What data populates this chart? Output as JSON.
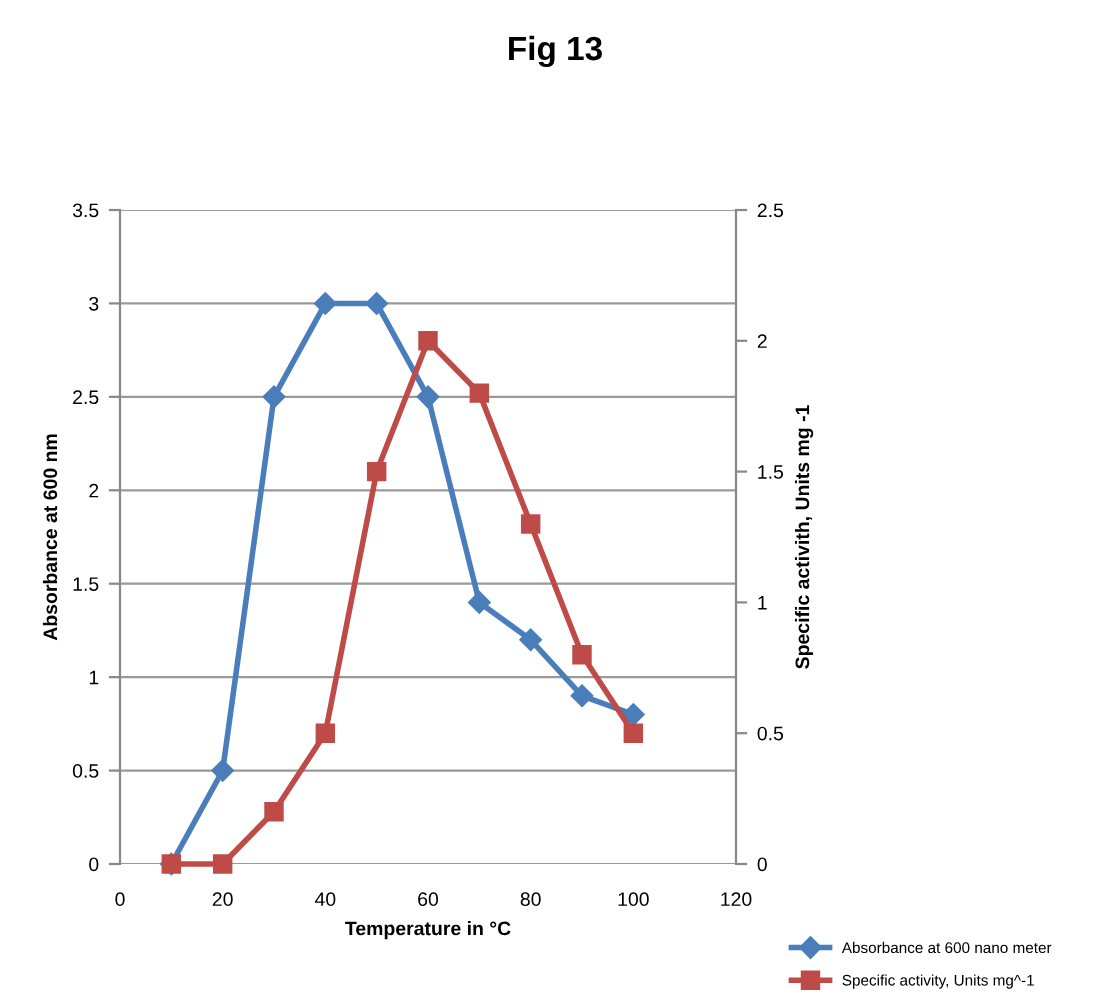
{
  "chart_data": {
    "type": "line",
    "title": "Fig 13",
    "xlabel": "Temperature in °C",
    "ylabel": "Absorbance at 600 nm",
    "y2label": "Specific activith, Units mg -1",
    "x": [
      10,
      20,
      30,
      40,
      50,
      60,
      70,
      80,
      90,
      100
    ],
    "series": [
      {
        "name": "Absorbance at 600 nano meter",
        "color": "#4a7ebb",
        "marker": "diamond",
        "values": [
          0,
          0.5,
          2.5,
          3,
          3,
          2.5,
          1.4,
          1.2,
          0.9,
          0.8
        ]
      },
      {
        "name": "Specific activity, Units mg^-1",
        "color": "#be4b48",
        "marker": "square",
        "axis": "y2",
        "values": [
          0,
          0,
          0.2,
          0.5,
          1.5,
          2,
          1.8,
          1.3,
          0.8,
          0.5
        ]
      }
    ],
    "xlim": [
      0,
      120
    ],
    "xticks": [
      0,
      20,
      40,
      60,
      80,
      100,
      120
    ],
    "ylim": [
      0,
      3.5
    ],
    "yticks": [
      0,
      0.5,
      1,
      1.5,
      2,
      2.5,
      3,
      3.5
    ],
    "y2lim": [
      0,
      2.5
    ],
    "y2ticks": [
      0,
      0.5,
      1,
      1.5,
      2,
      2.5
    ],
    "grid": "y",
    "legend": "bottom right"
  }
}
